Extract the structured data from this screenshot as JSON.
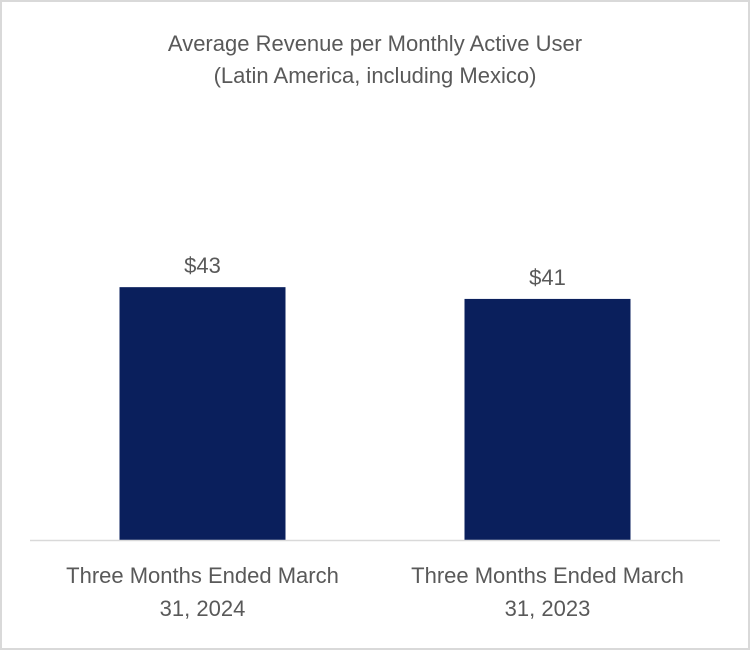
{
  "chart_data": {
    "type": "bar",
    "title": "Average Revenue per Monthly Active User",
    "subtitle": "(Latin America, including Mexico)",
    "categories": [
      [
        "Three Months Ended March",
        "31, 2024"
      ],
      [
        "Three Months Ended March",
        "31, 2023"
      ]
    ],
    "values": [
      43,
      41
    ],
    "data_labels": [
      "$43",
      "$41"
    ],
    "xlabel": "",
    "ylabel": "",
    "ylim": [
      0,
      50
    ],
    "grid": false,
    "legend": "none",
    "colors": {
      "bar": "#0a1f5c",
      "axis": "#d9d9d9",
      "text": "#595959"
    }
  }
}
